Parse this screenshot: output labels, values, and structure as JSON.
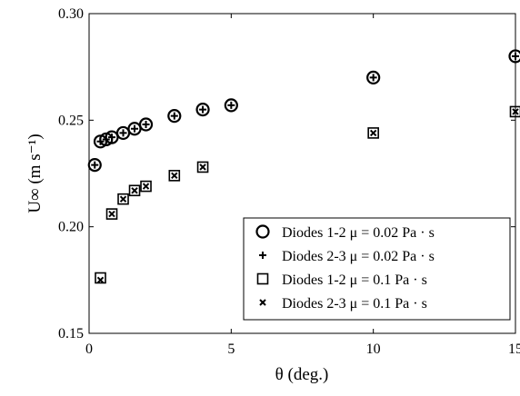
{
  "chart_data": {
    "type": "scatter",
    "title": "",
    "xlabel": "θ (deg.)",
    "ylabel": "U∞ (m s⁻¹)",
    "xlim": [
      0,
      15
    ],
    "ylim": [
      0.15,
      0.3
    ],
    "xticks": [
      0,
      5,
      10,
      15
    ],
    "xtick_labels": [
      "0",
      "5",
      "10",
      "15"
    ],
    "yticks": [
      0.15,
      0.2,
      0.25,
      0.3
    ],
    "ytick_labels": [
      "0.15",
      "0.20",
      "0.25",
      "0.30"
    ],
    "grid": false,
    "legend_position": "bottom-right",
    "series": [
      {
        "name": "Diodes 1-2 μ = 0.02 Pa · s",
        "marker": "circle",
        "color": "#000000",
        "x": [
          0.2,
          0.4,
          0.6,
          0.8,
          1.2,
          1.6,
          2.0,
          3.0,
          4.0,
          5.0,
          10.0,
          15.0
        ],
        "y": [
          0.229,
          0.24,
          0.241,
          0.242,
          0.244,
          0.246,
          0.248,
          0.252,
          0.255,
          0.257,
          0.27,
          0.28
        ]
      },
      {
        "name": "Diodes 2-3 μ = 0.02 Pa · s",
        "marker": "plus",
        "color": "#000000",
        "x": [
          0.2,
          0.4,
          0.6,
          0.8,
          1.2,
          1.6,
          2.0,
          3.0,
          4.0,
          5.0,
          10.0,
          15.0
        ],
        "y": [
          0.229,
          0.24,
          0.241,
          0.242,
          0.244,
          0.246,
          0.248,
          0.252,
          0.255,
          0.257,
          0.27,
          0.28
        ]
      },
      {
        "name": "Diodes 1-2 μ = 0.1 Pa · s",
        "marker": "square",
        "color": "#000000",
        "x": [
          0.4,
          0.8,
          1.2,
          1.6,
          2.0,
          3.0,
          4.0,
          10.0,
          15.0
        ],
        "y": [
          0.176,
          0.206,
          0.213,
          0.217,
          0.219,
          0.224,
          0.228,
          0.244,
          0.254
        ]
      },
      {
        "name": "Diodes 2-3 μ = 0.1 Pa · s",
        "marker": "x",
        "color": "#000000",
        "x": [
          0.4,
          0.8,
          1.2,
          1.6,
          2.0,
          3.0,
          4.0,
          10.0,
          15.0
        ],
        "y": [
          0.175,
          0.206,
          0.213,
          0.217,
          0.219,
          0.224,
          0.228,
          0.244,
          0.254
        ]
      }
    ]
  }
}
